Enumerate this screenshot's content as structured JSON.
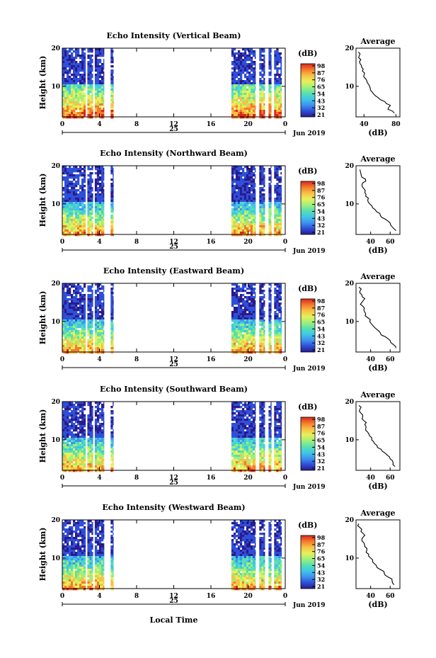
{
  "figure": {
    "x_axis_label": "Local Time",
    "date_label": "Jun 2019",
    "day_label": "25",
    "colorbar_unit": "(dB)",
    "colorbar_ticks": [
      "21",
      "32",
      "43",
      "54",
      "65",
      "76",
      "87",
      "98"
    ],
    "colormap": [
      "#2a1a8c",
      "#2e4fd8",
      "#3f93ee",
      "#40c6e8",
      "#57e0b0",
      "#9ff07a",
      "#e8f05a",
      "#f9c043",
      "#f47a2c",
      "#d8281e"
    ]
  },
  "chart_data": [
    {
      "type": "heatmap",
      "title": "Echo Intensity (Vertical Beam)",
      "xlabel": "",
      "ylabel": "Height (km)",
      "xlim": [
        0,
        24
      ],
      "ylim": [
        2,
        20
      ],
      "x_ticks": [
        "0",
        "4",
        "8",
        "12",
        "16",
        "20",
        "0"
      ],
      "y_ticks": [
        "20",
        "10"
      ],
      "clim": [
        21,
        98
      ],
      "data_time_ranges": [
        [
          0,
          2.5
        ],
        [
          2.7,
          3.3
        ],
        [
          3.5,
          4.5
        ],
        [
          5.2,
          5.5
        ],
        [
          18.2,
          20.8
        ],
        [
          21.2,
          21.8
        ],
        [
          22.2,
          22.5
        ],
        [
          22.8,
          23.6
        ]
      ],
      "profile": {
        "title": "Average",
        "xlabel": "(dB)",
        "xlim": [
          30,
          85
        ],
        "x_ticks": [
          "40",
          "80"
        ],
        "y_ticks": [
          "20",
          "10"
        ],
        "height_km": [
          3,
          4,
          5,
          6,
          7,
          8,
          9,
          10,
          11,
          12,
          13,
          14,
          15,
          16,
          17,
          18,
          19
        ],
        "value_db": [
          78,
          70,
          73,
          66,
          58,
          52,
          48,
          47,
          44,
          42,
          40,
          38,
          37,
          35,
          36,
          34,
          33
        ]
      }
    },
    {
      "type": "heatmap",
      "title": "Echo Intensity (Northward Beam)",
      "xlabel": "",
      "ylabel": "Height (km)",
      "xlim": [
        0,
        24
      ],
      "ylim": [
        2,
        20
      ],
      "x_ticks": [
        "0",
        "4",
        "8",
        "12",
        "16",
        "20",
        "0"
      ],
      "y_ticks": [
        "20",
        "10"
      ],
      "clim": [
        21,
        98
      ],
      "data_time_ranges": [
        [
          0,
          2.5
        ],
        [
          2.7,
          3.3
        ],
        [
          3.5,
          4.5
        ],
        [
          5.2,
          5.5
        ],
        [
          18.2,
          20.8
        ],
        [
          21.2,
          21.8
        ],
        [
          22.2,
          22.5
        ],
        [
          22.8,
          23.6
        ]
      ],
      "profile": {
        "title": "Average",
        "xlabel": "(dB)",
        "xlim": [
          25,
          70
        ],
        "x_ticks": [
          "40",
          "60"
        ],
        "y_ticks": [
          "20",
          "10"
        ],
        "height_km": [
          3,
          4,
          5,
          6,
          7,
          8,
          9,
          10,
          11,
          12,
          13,
          14,
          15,
          16,
          17,
          18,
          19
        ],
        "value_db": [
          66,
          62,
          60,
          55,
          50,
          46,
          42,
          39,
          37,
          35,
          34,
          33,
          31,
          35,
          31,
          30,
          29
        ]
      }
    },
    {
      "type": "heatmap",
      "title": "Echo Intensity (Eastward Beam)",
      "xlabel": "",
      "ylabel": "Height (km)",
      "xlim": [
        0,
        24
      ],
      "ylim": [
        2,
        20
      ],
      "x_ticks": [
        "0",
        "4",
        "8",
        "12",
        "16",
        "20",
        "0"
      ],
      "y_ticks": [
        "20",
        "10"
      ],
      "clim": [
        21,
        98
      ],
      "data_time_ranges": [
        [
          0,
          2.5
        ],
        [
          2.7,
          3.3
        ],
        [
          3.5,
          4.5
        ],
        [
          5.2,
          5.5
        ],
        [
          18.2,
          20.8
        ],
        [
          21.2,
          21.8
        ],
        [
          22.2,
          22.5
        ],
        [
          22.8,
          23.6
        ]
      ],
      "profile": {
        "title": "Average",
        "xlabel": "(dB)",
        "xlim": [
          25,
          70
        ],
        "x_ticks": [
          "40",
          "60"
        ],
        "y_ticks": [
          "20",
          "10"
        ],
        "height_km": [
          3,
          4,
          5,
          6,
          7,
          8,
          9,
          10,
          11,
          12,
          13,
          14,
          15,
          16,
          17,
          18,
          19
        ],
        "value_db": [
          66,
          63,
          60,
          55,
          50,
          46,
          42,
          39,
          37,
          35,
          33,
          32,
          31,
          34,
          31,
          29,
          28
        ]
      }
    },
    {
      "type": "heatmap",
      "title": "Echo Intensity (Southward Beam)",
      "xlabel": "",
      "ylabel": "Height (km)",
      "xlim": [
        0,
        24
      ],
      "ylim": [
        2,
        20
      ],
      "x_ticks": [
        "0",
        "4",
        "8",
        "12",
        "16",
        "20",
        "0"
      ],
      "y_ticks": [
        "20",
        "10"
      ],
      "clim": [
        21,
        98
      ],
      "data_time_ranges": [
        [
          0,
          2.5
        ],
        [
          2.7,
          3.3
        ],
        [
          3.5,
          4.5
        ],
        [
          5.2,
          5.5
        ],
        [
          18.2,
          20.8
        ],
        [
          21.2,
          21.8
        ],
        [
          22.2,
          22.5
        ],
        [
          22.8,
          23.6
        ]
      ],
      "profile": {
        "title": "Average",
        "xlabel": "(dB)",
        "xlim": [
          25,
          70
        ],
        "x_ticks": [
          "40",
          "60"
        ],
        "y_ticks": [
          "20",
          "10"
        ],
        "height_km": [
          3,
          4,
          5,
          6,
          7,
          8,
          9,
          10,
          11,
          12,
          13,
          14,
          15,
          16,
          17,
          18,
          19
        ],
        "value_db": [
          65,
          63,
          60,
          57,
          52,
          47,
          44,
          41,
          39,
          37,
          35,
          34,
          33,
          32,
          30,
          29,
          28
        ]
      }
    },
    {
      "type": "heatmap",
      "title": "Echo Intensity (Westward Beam)",
      "xlabel": "",
      "ylabel": "Height (km)",
      "xlim": [
        0,
        24
      ],
      "ylim": [
        2,
        20
      ],
      "x_ticks": [
        "0",
        "4",
        "8",
        "12",
        "16",
        "20",
        "0"
      ],
      "y_ticks": [
        "20",
        "10"
      ],
      "clim": [
        21,
        98
      ],
      "data_time_ranges": [
        [
          0,
          2.5
        ],
        [
          2.7,
          3.3
        ],
        [
          3.5,
          4.5
        ],
        [
          5.2,
          5.5
        ],
        [
          18.2,
          20.8
        ],
        [
          21.2,
          21.8
        ],
        [
          22.2,
          22.5
        ],
        [
          22.8,
          23.6
        ]
      ],
      "profile": {
        "title": "Average",
        "xlabel": "(dB)",
        "xlim": [
          25,
          70
        ],
        "x_ticks": [
          "40",
          "60"
        ],
        "y_ticks": [
          "20",
          "10"
        ],
        "height_km": [
          3,
          4,
          5,
          6,
          7,
          8,
          9,
          10,
          11,
          12,
          13,
          14,
          15,
          16,
          17,
          18,
          19
        ],
        "value_db": [
          64,
          62,
          58,
          54,
          50,
          46,
          42,
          40,
          38,
          36,
          34,
          33,
          31,
          34,
          30,
          29,
          28
        ]
      }
    }
  ]
}
